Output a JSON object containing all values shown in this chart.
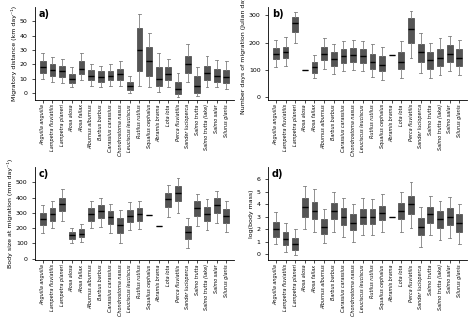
{
  "species_labels": [
    "Anguilla anguilla",
    "Lampetra fluviatilis",
    "Lampetra planeri",
    "Alosa alosa",
    "Alosa fallax",
    "Alburnus alburnus",
    "Barbus barbus",
    "Carassius carassius",
    "Chondrostoma nasus",
    "Leuciscus leuciscus",
    "Rutilus rutilus",
    "Squalius cephalus",
    "Abramis brama",
    "Lota lota",
    "Perca fluviatilis",
    "Sander lucioperca",
    "Salmo trutta",
    "Salmo trutta (lake)",
    "Salmo salar",
    "Silurus glanis"
  ],
  "panel_a": {
    "title": "a)",
    "ylabel": "Migratory distance (km day⁻¹)",
    "ylim": [
      -5,
      60
    ],
    "yticks": [
      0,
      10,
      20,
      30,
      40,
      50
    ],
    "boxes": [
      {
        "med": 18,
        "q1": 14,
        "q3": 22,
        "whislo": 10,
        "whishi": 28
      },
      {
        "med": 16,
        "q1": 12,
        "q3": 20,
        "whislo": 8,
        "whishi": 25
      },
      {
        "med": 15,
        "q1": 11,
        "q3": 19,
        "whislo": 7,
        "whishi": 24
      },
      {
        "med": 10,
        "q1": 7,
        "q3": 13,
        "whislo": 4,
        "whishi": 18
      },
      {
        "med": 17,
        "q1": 13,
        "q3": 22,
        "whislo": 9,
        "whishi": 28
      },
      {
        "med": 12,
        "q1": 9,
        "q3": 16,
        "whislo": 5,
        "whishi": 20
      },
      {
        "med": 11,
        "q1": 8,
        "q3": 15,
        "whislo": 4,
        "whishi": 19
      },
      {
        "med": 12,
        "q1": 9,
        "q3": 15,
        "whislo": 5,
        "whishi": 20
      },
      {
        "med": 13,
        "q1": 9,
        "q3": 17,
        "whislo": 5,
        "whishi": 22
      },
      {
        "med": 5,
        "q1": 2,
        "q3": 8,
        "whislo": 0,
        "whishi": 12
      },
      {
        "med": 30,
        "q1": 15,
        "q3": 45,
        "whislo": 5,
        "whishi": 55
      },
      {
        "med": 22,
        "q1": 12,
        "q3": 32,
        "whislo": 4,
        "whishi": 42
      },
      {
        "med": 10,
        "q1": 5,
        "q3": 18,
        "whislo": 1,
        "whishi": 28
      },
      {
        "med": 13,
        "q1": 9,
        "q3": 18,
        "whislo": 4,
        "whishi": 24
      },
      {
        "med": 3,
        "q1": -1,
        "q3": 8,
        "whislo": -3,
        "whishi": 14
      },
      {
        "med": 20,
        "q1": 14,
        "q3": 26,
        "whislo": 8,
        "whishi": 34
      },
      {
        "med": 5,
        "q1": 0,
        "q3": 12,
        "whislo": -2,
        "whishi": 18
      },
      {
        "med": 14,
        "q1": 9,
        "q3": 19,
        "whislo": 4,
        "whishi": 26
      },
      {
        "med": 12,
        "q1": 8,
        "q3": 17,
        "whislo": 4,
        "whishi": 23
      },
      {
        "med": 11,
        "q1": 7,
        "q3": 16,
        "whislo": 3,
        "whishi": 22
      }
    ]
  },
  "panel_b": {
    "title": "b)",
    "ylabel": "Number days of migration (Julian day)",
    "ylim": [
      -10,
      330
    ],
    "yticks": [
      0,
      100,
      200,
      300
    ],
    "boxes": [
      {
        "med": 160,
        "q1": 140,
        "q3": 180,
        "whislo": 110,
        "whishi": 210
      },
      {
        "med": 165,
        "q1": 145,
        "q3": 185,
        "whislo": 115,
        "whishi": 220
      },
      {
        "med": 270,
        "q1": 240,
        "q3": 295,
        "whislo": 200,
        "whishi": 310
      },
      {
        "med": 100,
        "q1": 100,
        "q3": 100,
        "whislo": 100,
        "whishi": 100
      },
      {
        "med": 110,
        "q1": 90,
        "q3": 130,
        "whislo": 70,
        "whishi": 155
      },
      {
        "med": 160,
        "q1": 135,
        "q3": 185,
        "whislo": 105,
        "whishi": 215
      },
      {
        "med": 140,
        "q1": 115,
        "q3": 165,
        "whislo": 85,
        "whishi": 195
      },
      {
        "med": 150,
        "q1": 125,
        "q3": 175,
        "whislo": 95,
        "whishi": 205
      },
      {
        "med": 155,
        "q1": 130,
        "q3": 180,
        "whislo": 100,
        "whishi": 210
      },
      {
        "med": 150,
        "q1": 125,
        "q3": 175,
        "whislo": 95,
        "whishi": 205
      },
      {
        "med": 130,
        "q1": 105,
        "q3": 160,
        "whislo": 75,
        "whishi": 195
      },
      {
        "med": 120,
        "q1": 95,
        "q3": 150,
        "whislo": 65,
        "whishi": 185
      },
      {
        "med": 155,
        "q1": 155,
        "q3": 155,
        "whislo": 155,
        "whishi": 155
      },
      {
        "med": 130,
        "q1": 105,
        "q3": 165,
        "whislo": 70,
        "whishi": 205
      },
      {
        "med": 250,
        "q1": 200,
        "q3": 290,
        "whislo": 145,
        "whishi": 315
      },
      {
        "med": 165,
        "q1": 130,
        "q3": 195,
        "whislo": 90,
        "whishi": 235
      },
      {
        "med": 135,
        "q1": 105,
        "q3": 165,
        "whislo": 70,
        "whishi": 200
      },
      {
        "med": 145,
        "q1": 115,
        "q3": 175,
        "whislo": 80,
        "whishi": 215
      },
      {
        "med": 160,
        "q1": 130,
        "q3": 190,
        "whislo": 95,
        "whishi": 225
      },
      {
        "med": 145,
        "q1": 115,
        "q3": 175,
        "whislo": 80,
        "whishi": 210
      }
    ]
  },
  "panel_c": {
    "title": "c)",
    "ylabel": "Body size at migration (mm day⁻¹)",
    "ylim": [
      -10,
      600
    ],
    "yticks": [
      0,
      100,
      200,
      300,
      400,
      500
    ],
    "boxes": [
      {
        "med": 260,
        "q1": 220,
        "q3": 300,
        "whislo": 170,
        "whishi": 350
      },
      {
        "med": 290,
        "q1": 250,
        "q3": 330,
        "whislo": 200,
        "whishi": 380
      },
      {
        "med": 360,
        "q1": 310,
        "q3": 400,
        "whislo": 250,
        "whishi": 455
      },
      {
        "med": 155,
        "q1": 130,
        "q3": 175,
        "whislo": 100,
        "whishi": 200
      },
      {
        "med": 165,
        "q1": 140,
        "q3": 195,
        "whislo": 110,
        "whishi": 230
      },
      {
        "med": 290,
        "q1": 250,
        "q3": 330,
        "whislo": 200,
        "whishi": 380
      },
      {
        "med": 310,
        "q1": 265,
        "q3": 350,
        "whislo": 210,
        "whishi": 400
      },
      {
        "med": 270,
        "q1": 225,
        "q3": 310,
        "whislo": 170,
        "whishi": 360
      },
      {
        "med": 220,
        "q1": 170,
        "q3": 265,
        "whislo": 100,
        "whishi": 320
      },
      {
        "med": 280,
        "q1": 240,
        "q3": 320,
        "whislo": 185,
        "whishi": 370
      },
      {
        "med": 290,
        "q1": 250,
        "q3": 330,
        "whislo": 195,
        "whishi": 380
      },
      {
        "med": 285,
        "q1": 285,
        "q3": 285,
        "whislo": 285,
        "whishi": 285
      },
      {
        "med": 215,
        "q1": 215,
        "q3": 215,
        "whislo": 215,
        "whishi": 215
      },
      {
        "med": 390,
        "q1": 340,
        "q3": 430,
        "whislo": 275,
        "whishi": 485
      },
      {
        "med": 430,
        "q1": 375,
        "q3": 475,
        "whislo": 300,
        "whishi": 530
      },
      {
        "med": 175,
        "q1": 130,
        "q3": 215,
        "whislo": 70,
        "whishi": 265
      },
      {
        "med": 330,
        "q1": 280,
        "q3": 375,
        "whislo": 215,
        "whishi": 425
      },
      {
        "med": 295,
        "q1": 250,
        "q3": 340,
        "whislo": 190,
        "whishi": 390
      },
      {
        "med": 350,
        "q1": 300,
        "q3": 395,
        "whislo": 235,
        "whishi": 445
      },
      {
        "med": 280,
        "q1": 235,
        "q3": 325,
        "whislo": 175,
        "whishi": 375
      }
    ]
  },
  "panel_d": {
    "title": "d)",
    "ylabel": "log(body mass)",
    "ylim": [
      -0.5,
      7
    ],
    "yticks": [
      0,
      1,
      2,
      3,
      4,
      5,
      6
    ],
    "boxes": [
      {
        "med": 2.0,
        "q1": 1.4,
        "q3": 2.6,
        "whislo": 0.8,
        "whishi": 3.4
      },
      {
        "med": 1.2,
        "q1": 0.7,
        "q3": 1.8,
        "whislo": 0.2,
        "whishi": 2.5
      },
      {
        "med": 0.8,
        "q1": 0.3,
        "q3": 1.3,
        "whislo": -0.1,
        "whishi": 2.0
      },
      {
        "med": 3.8,
        "q1": 3.0,
        "q3": 4.5,
        "whislo": 2.0,
        "whishi": 5.5
      },
      {
        "med": 3.5,
        "q1": 2.8,
        "q3": 4.2,
        "whislo": 1.8,
        "whishi": 5.2
      },
      {
        "med": 2.2,
        "q1": 1.6,
        "q3": 2.8,
        "whislo": 0.9,
        "whishi": 3.6
      },
      {
        "med": 3.5,
        "q1": 2.8,
        "q3": 4.1,
        "whislo": 1.8,
        "whishi": 5.0
      },
      {
        "med": 3.0,
        "q1": 2.3,
        "q3": 3.7,
        "whislo": 1.4,
        "whishi": 4.5
      },
      {
        "med": 2.5,
        "q1": 1.9,
        "q3": 3.2,
        "whislo": 1.0,
        "whishi": 4.0
      },
      {
        "med": 3.0,
        "q1": 2.4,
        "q3": 3.6,
        "whislo": 1.5,
        "whishi": 4.5
      },
      {
        "med": 3.0,
        "q1": 2.4,
        "q3": 3.6,
        "whislo": 1.5,
        "whishi": 4.4
      },
      {
        "med": 3.3,
        "q1": 2.7,
        "q3": 3.9,
        "whislo": 1.8,
        "whishi": 4.8
      },
      {
        "med": 3.0,
        "q1": 3.0,
        "q3": 3.0,
        "whislo": 3.0,
        "whishi": 3.0
      },
      {
        "med": 3.5,
        "q1": 2.8,
        "q3": 4.1,
        "whislo": 1.8,
        "whishi": 5.0
      },
      {
        "med": 4.0,
        "q1": 3.2,
        "q3": 4.7,
        "whislo": 2.1,
        "whishi": 5.8
      },
      {
        "med": 2.2,
        "q1": 1.5,
        "q3": 2.9,
        "whislo": 0.6,
        "whishi": 3.8
      },
      {
        "med": 3.2,
        "q1": 2.5,
        "q3": 3.8,
        "whislo": 1.5,
        "whishi": 4.7
      },
      {
        "med": 2.8,
        "q1": 2.1,
        "q3": 3.5,
        "whislo": 1.1,
        "whishi": 4.3
      },
      {
        "med": 3.0,
        "q1": 2.3,
        "q3": 3.7,
        "whislo": 1.3,
        "whishi": 4.6
      },
      {
        "med": 2.5,
        "q1": 1.8,
        "q3": 3.2,
        "whislo": 0.8,
        "whishi": 4.0
      }
    ]
  },
  "box_color": "#d3d3d3",
  "median_color": "#000000",
  "whisker_color": "#808080",
  "fig_width": 4.74,
  "fig_height": 3.23
}
